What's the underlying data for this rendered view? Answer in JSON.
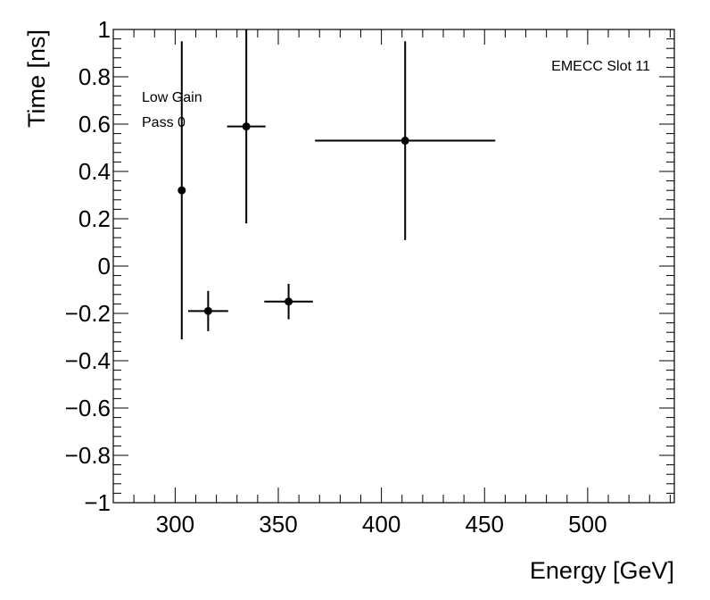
{
  "chart_data": {
    "type": "scatter",
    "xlabel": "Energy [GeV]",
    "ylabel": "Time [ns]",
    "xlim": [
      270,
      542
    ],
    "ylim": [
      -1,
      1
    ],
    "x_ticks": [
      300,
      350,
      400,
      450,
      500
    ],
    "x_tick_labels": [
      "300",
      "350",
      "400",
      "450",
      "500"
    ],
    "y_ticks": [
      -1,
      -0.8,
      -0.6,
      -0.4,
      -0.2,
      0,
      0.2,
      0.4,
      0.6,
      0.8,
      1
    ],
    "y_tick_labels": [
      "−1",
      "−0.8",
      "−0.6",
      "−0.4",
      "−0.2",
      "0",
      "0.2",
      "0.4",
      "0.6",
      "0.8",
      "1"
    ],
    "grid": false,
    "annotations": [
      "Low Gain",
      "Pass 0",
      "EMECC Slot 11"
    ],
    "points": [
      {
        "x": 303.2,
        "y": 0.32,
        "xerr": [
          0.5,
          0.5
        ],
        "yerr": [
          0.63,
          0.63
        ]
      },
      {
        "x": 316.0,
        "y": -0.19,
        "xerr": [
          9.7,
          9.7
        ],
        "yerr": [
          0.085,
          0.085
        ]
      },
      {
        "x": 334.5,
        "y": 0.59,
        "xerr": [
          9.3,
          9.3
        ],
        "yerr": [
          0.41,
          0.41
        ]
      },
      {
        "x": 355.0,
        "y": -0.15,
        "xerr": [
          11.8,
          11.8
        ],
        "yerr": [
          0.075,
          0.075
        ]
      },
      {
        "x": 411.5,
        "y": 0.53,
        "xerr": [
          43.7,
          43.7
        ],
        "yerr": [
          0.42,
          0.42
        ]
      }
    ]
  }
}
